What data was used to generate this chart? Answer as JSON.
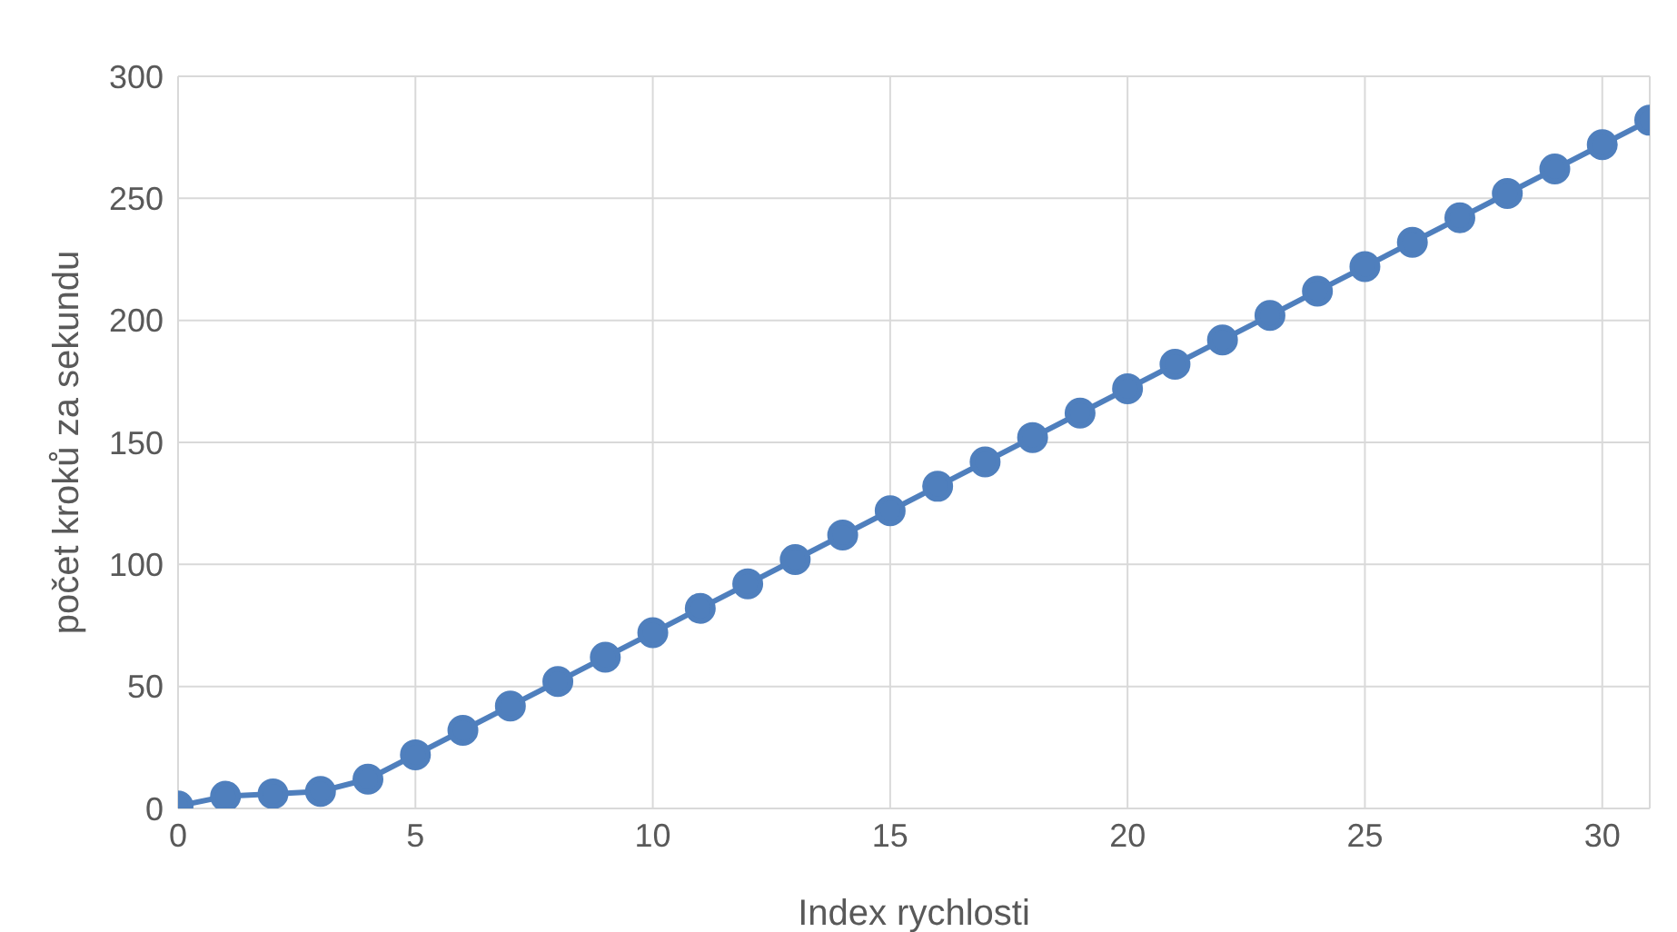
{
  "chart_data": {
    "type": "line",
    "xlabel": "Index rychlosti",
    "ylabel": "počet kroků za sekundu",
    "x": [
      0,
      1,
      2,
      3,
      4,
      5,
      6,
      7,
      8,
      9,
      10,
      11,
      12,
      13,
      14,
      15,
      16,
      17,
      18,
      19,
      20,
      21,
      22,
      23,
      24,
      25,
      26,
      27,
      28,
      29,
      30,
      31
    ],
    "series": [
      {
        "color": "#4f7fbd",
        "values": [
          1,
          5,
          6,
          7,
          12,
          22,
          32,
          42,
          52,
          62,
          72,
          82,
          92,
          102,
          112,
          122,
          132,
          142,
          152,
          162,
          172,
          182,
          192,
          202,
          212,
          222,
          232,
          242,
          252,
          262,
          272,
          282
        ]
      }
    ],
    "xlim": [
      0,
      31
    ],
    "xticks": [
      0,
      5,
      10,
      15,
      20,
      25,
      30
    ],
    "ylim": [
      0,
      300
    ],
    "yticks": [
      0,
      50,
      100,
      150,
      200,
      250,
      300
    ],
    "grid": true,
    "marker": "circle",
    "line_style": "solid"
  }
}
